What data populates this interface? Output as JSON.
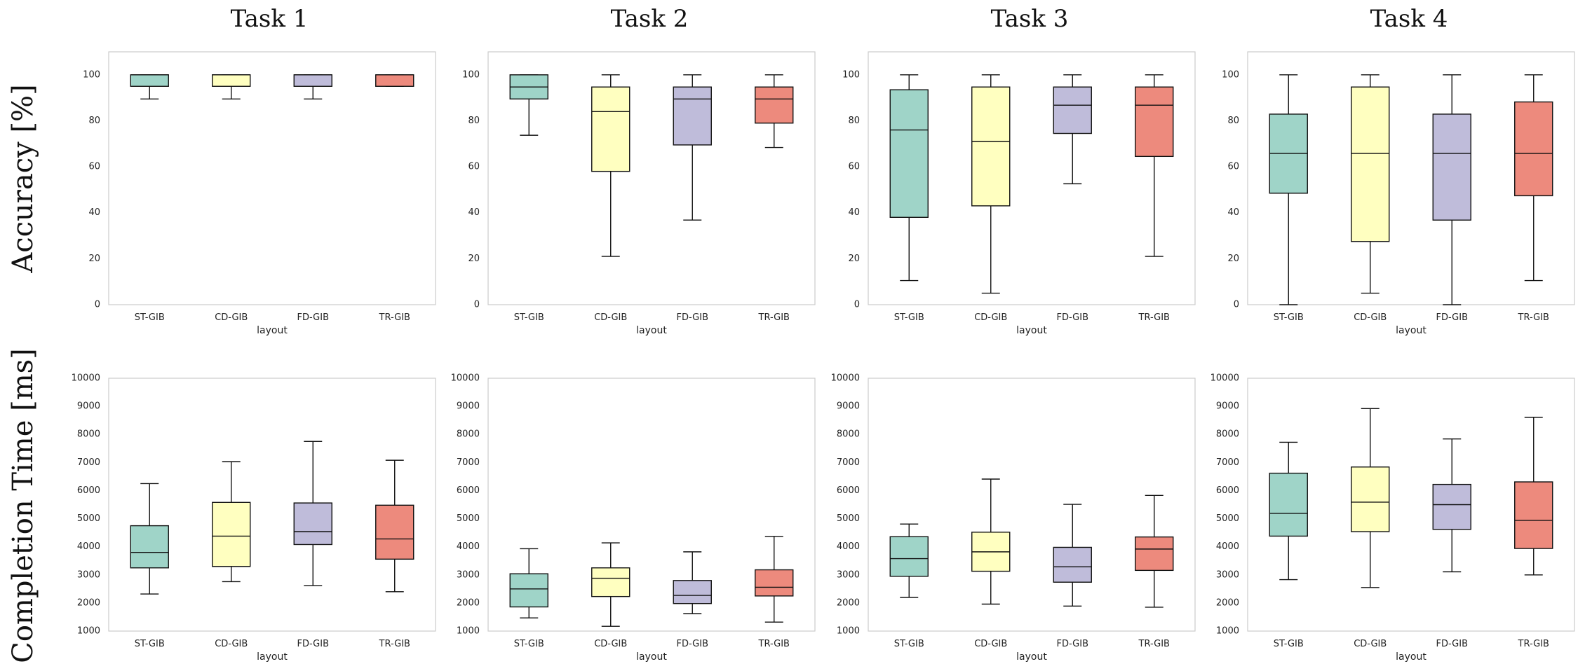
{
  "figure": {
    "task_titles": [
      "Task 1",
      "Task 2",
      "Task 3",
      "Task 4"
    ],
    "row_labels": [
      "Accuracy [%]",
      "Completion Time [ms]"
    ]
  },
  "colors": {
    "ST-GIB": "#9fd4c8",
    "CD-GIB": "#ffffc0",
    "FD-GIB": "#bfbcda",
    "TR-GIB": "#ed8a7d",
    "axis_frame": "#cccccc",
    "box_edge": "#111111"
  },
  "chart_data": [
    {
      "type": "boxplot",
      "row": "accuracy",
      "task": "Task 1",
      "xlabel": "layout",
      "ylabel": "Accuracy [%]",
      "ylim": [
        0,
        110
      ],
      "yticks": [
        0,
        20,
        40,
        60,
        80,
        100
      ],
      "grid": false,
      "categories": [
        "ST-GIB",
        "CD-GIB",
        "FD-GIB",
        "TR-GIB"
      ],
      "boxes": [
        {
          "name": "ST-GIB",
          "whislo": 89.5,
          "q1": 95,
          "med": 100,
          "q3": 100,
          "whishi": 100
        },
        {
          "name": "CD-GIB",
          "whislo": 89.5,
          "q1": 95,
          "med": 100,
          "q3": 100,
          "whishi": 100
        },
        {
          "name": "FD-GIB",
          "whislo": 89.5,
          "q1": 95,
          "med": 100,
          "q3": 100,
          "whishi": 100
        },
        {
          "name": "TR-GIB",
          "whislo": 95,
          "q1": 95,
          "med": 100,
          "q3": 100,
          "whishi": 100
        }
      ]
    },
    {
      "type": "boxplot",
      "row": "accuracy",
      "task": "Task 2",
      "xlabel": "layout",
      "ylabel": "Accuracy [%]",
      "ylim": [
        0,
        110
      ],
      "yticks": [
        0,
        20,
        40,
        60,
        80,
        100
      ],
      "grid": false,
      "categories": [
        "ST-GIB",
        "CD-GIB",
        "FD-GIB",
        "TR-GIB"
      ],
      "boxes": [
        {
          "name": "ST-GIB",
          "whislo": 73.7,
          "q1": 89.5,
          "med": 94.7,
          "q3": 100,
          "whishi": 100
        },
        {
          "name": "CD-GIB",
          "whislo": 21,
          "q1": 58,
          "med": 84,
          "q3": 94.7,
          "whishi": 100
        },
        {
          "name": "FD-GIB",
          "whislo": 36.8,
          "q1": 69.5,
          "med": 89.5,
          "q3": 94.7,
          "whishi": 100
        },
        {
          "name": "TR-GIB",
          "whislo": 68.4,
          "q1": 79,
          "med": 89.5,
          "q3": 94.7,
          "whishi": 100
        }
      ]
    },
    {
      "type": "boxplot",
      "row": "accuracy",
      "task": "Task 3",
      "xlabel": "layout",
      "ylabel": "Accuracy [%]",
      "ylim": [
        0,
        110
      ],
      "yticks": [
        0,
        20,
        40,
        60,
        80,
        100
      ],
      "grid": false,
      "categories": [
        "ST-GIB",
        "CD-GIB",
        "FD-GIB",
        "TR-GIB"
      ],
      "boxes": [
        {
          "name": "ST-GIB",
          "whislo": 10.5,
          "q1": 38,
          "med": 76,
          "q3": 93.5,
          "whishi": 100
        },
        {
          "name": "CD-GIB",
          "whislo": 5,
          "q1": 43,
          "med": 71,
          "q3": 94.7,
          "whishi": 100
        },
        {
          "name": "FD-GIB",
          "whislo": 52.6,
          "q1": 74.5,
          "med": 86.8,
          "q3": 94.7,
          "whishi": 100
        },
        {
          "name": "TR-GIB",
          "whislo": 21,
          "q1": 64.5,
          "med": 86.8,
          "q3": 94.7,
          "whishi": 100
        }
      ]
    },
    {
      "type": "boxplot",
      "row": "accuracy",
      "task": "Task 4",
      "xlabel": "layout",
      "ylabel": "Accuracy [%]",
      "ylim": [
        0,
        110
      ],
      "yticks": [
        0,
        20,
        40,
        60,
        80,
        100
      ],
      "grid": false,
      "categories": [
        "ST-GIB",
        "CD-GIB",
        "FD-GIB",
        "TR-GIB"
      ],
      "boxes": [
        {
          "name": "ST-GIB",
          "whislo": 0,
          "q1": 48.5,
          "med": 65.8,
          "q3": 82.9,
          "whishi": 100
        },
        {
          "name": "CD-GIB",
          "whislo": 5,
          "q1": 27.5,
          "med": 65.8,
          "q3": 94.7,
          "whishi": 100
        },
        {
          "name": "FD-GIB",
          "whislo": 0,
          "q1": 36.8,
          "med": 65.8,
          "q3": 82.9,
          "whishi": 100
        },
        {
          "name": "TR-GIB",
          "whislo": 10.5,
          "q1": 47.4,
          "med": 65.8,
          "q3": 88.2,
          "whishi": 100
        }
      ]
    },
    {
      "type": "boxplot",
      "row": "completion_time",
      "task": "Task 1",
      "xlabel": "layout",
      "ylabel": "Completion Time [ms]",
      "ylim": [
        1000,
        10000
      ],
      "yticks": [
        1000,
        2000,
        3000,
        4000,
        5000,
        6000,
        7000,
        8000,
        9000,
        10000
      ],
      "grid": false,
      "categories": [
        "ST-GIB",
        "CD-GIB",
        "FD-GIB",
        "TR-GIB"
      ],
      "boxes": [
        {
          "name": "ST-GIB",
          "whislo": 2320,
          "q1": 3250,
          "med": 3800,
          "q3": 4750,
          "whishi": 6250
        },
        {
          "name": "CD-GIB",
          "whislo": 2760,
          "q1": 3300,
          "med": 4380,
          "q3": 5580,
          "whishi": 7030
        },
        {
          "name": "FD-GIB",
          "whislo": 2620,
          "q1": 4080,
          "med": 4540,
          "q3": 5560,
          "whishi": 7750
        },
        {
          "name": "TR-GIB",
          "whislo": 2400,
          "q1": 3560,
          "med": 4280,
          "q3": 5480,
          "whishi": 7080
        }
      ]
    },
    {
      "type": "boxplot",
      "row": "completion_time",
      "task": "Task 2",
      "xlabel": "layout",
      "ylabel": "Completion Time [ms]",
      "ylim": [
        1000,
        10000
      ],
      "yticks": [
        1000,
        2000,
        3000,
        4000,
        5000,
        6000,
        7000,
        8000,
        9000,
        10000
      ],
      "grid": false,
      "categories": [
        "ST-GIB",
        "CD-GIB",
        "FD-GIB",
        "TR-GIB"
      ],
      "boxes": [
        {
          "name": "ST-GIB",
          "whislo": 1470,
          "q1": 1860,
          "med": 2500,
          "q3": 3040,
          "whishi": 3930
        },
        {
          "name": "CD-GIB",
          "whislo": 1170,
          "q1": 2230,
          "med": 2880,
          "q3": 3250,
          "whishi": 4140
        },
        {
          "name": "FD-GIB",
          "whislo": 1620,
          "q1": 1980,
          "med": 2270,
          "q3": 2800,
          "whishi": 3820
        },
        {
          "name": "TR-GIB",
          "whislo": 1320,
          "q1": 2250,
          "med": 2560,
          "q3": 3180,
          "whishi": 4370
        }
      ]
    },
    {
      "type": "boxplot",
      "row": "completion_time",
      "task": "Task 3",
      "xlabel": "layout",
      "ylabel": "Completion Time [ms]",
      "ylim": [
        1000,
        10000
      ],
      "yticks": [
        1000,
        2000,
        3000,
        4000,
        5000,
        6000,
        7000,
        8000,
        9000,
        10000
      ],
      "grid": false,
      "categories": [
        "ST-GIB",
        "CD-GIB",
        "FD-GIB",
        "TR-GIB"
      ],
      "boxes": [
        {
          "name": "ST-GIB",
          "whislo": 2200,
          "q1": 2950,
          "med": 3580,
          "q3": 4360,
          "whishi": 4810
        },
        {
          "name": "CD-GIB",
          "whislo": 1960,
          "q1": 3130,
          "med": 3820,
          "q3": 4520,
          "whishi": 6410
        },
        {
          "name": "FD-GIB",
          "whislo": 1890,
          "q1": 2740,
          "med": 3290,
          "q3": 3980,
          "whishi": 5510
        },
        {
          "name": "TR-GIB",
          "whislo": 1850,
          "q1": 3160,
          "med": 3920,
          "q3": 4350,
          "whishi": 5830
        }
      ]
    },
    {
      "type": "boxplot",
      "row": "completion_time",
      "task": "Task 4",
      "xlabel": "layout",
      "ylabel": "Completion Time [ms]",
      "ylim": [
        1000,
        10000
      ],
      "yticks": [
        1000,
        2000,
        3000,
        4000,
        5000,
        6000,
        7000,
        8000,
        9000,
        10000
      ],
      "grid": false,
      "categories": [
        "ST-GIB",
        "CD-GIB",
        "FD-GIB",
        "TR-GIB"
      ],
      "boxes": [
        {
          "name": "ST-GIB",
          "whislo": 2830,
          "q1": 4380,
          "med": 5190,
          "q3": 6620,
          "whishi": 7720
        },
        {
          "name": "CD-GIB",
          "whislo": 2550,
          "q1": 4540,
          "med": 5590,
          "q3": 6840,
          "whishi": 8920
        },
        {
          "name": "FD-GIB",
          "whislo": 3110,
          "q1": 4620,
          "med": 5500,
          "q3": 6220,
          "whishi": 7840
        },
        {
          "name": "TR-GIB",
          "whislo": 3000,
          "q1": 3940,
          "med": 4940,
          "q3": 6310,
          "whishi": 8610
        }
      ]
    }
  ]
}
